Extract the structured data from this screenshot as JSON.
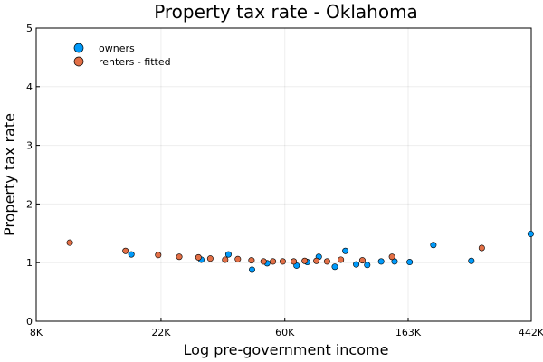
{
  "chart_data": {
    "type": "scatter",
    "title": "Property tax rate - Oklahoma",
    "xlabel": "Log pre-government income",
    "ylabel": "Property tax rate",
    "x_scale": "log",
    "xlim": [
      8000,
      442000
    ],
    "ylim": [
      0,
      5
    ],
    "x_ticks": [
      {
        "value": 8000,
        "label": "8K"
      },
      {
        "value": 22000,
        "label": "22K"
      },
      {
        "value": 60000,
        "label": "60K"
      },
      {
        "value": 163000,
        "label": "163K"
      },
      {
        "value": 442000,
        "label": "442K"
      }
    ],
    "y_ticks": [
      0,
      1,
      2,
      3,
      4,
      5
    ],
    "grid": true,
    "legend_position": "top-left",
    "series": [
      {
        "name": "owners",
        "color": "#009AFA",
        "points": [
          {
            "x": 17300,
            "y": 1.14
          },
          {
            "x": 30500,
            "y": 1.05
          },
          {
            "x": 38000,
            "y": 1.14
          },
          {
            "x": 46000,
            "y": 0.88
          },
          {
            "x": 52000,
            "y": 0.99
          },
          {
            "x": 66000,
            "y": 0.95
          },
          {
            "x": 72000,
            "y": 1.01
          },
          {
            "x": 79000,
            "y": 1.1
          },
          {
            "x": 90000,
            "y": 0.93
          },
          {
            "x": 98000,
            "y": 1.2
          },
          {
            "x": 107000,
            "y": 0.97
          },
          {
            "x": 117000,
            "y": 0.96
          },
          {
            "x": 131000,
            "y": 1.02
          },
          {
            "x": 146000,
            "y": 1.02
          },
          {
            "x": 165000,
            "y": 1.01
          },
          {
            "x": 200000,
            "y": 1.3
          },
          {
            "x": 272000,
            "y": 1.03
          },
          {
            "x": 440000,
            "y": 1.49
          }
        ]
      },
      {
        "name": "renters - fitted",
        "color": "#E26F46",
        "points": [
          {
            "x": 10500,
            "y": 1.34
          },
          {
            "x": 16500,
            "y": 1.2
          },
          {
            "x": 21500,
            "y": 1.13
          },
          {
            "x": 25500,
            "y": 1.1
          },
          {
            "x": 29800,
            "y": 1.09
          },
          {
            "x": 32800,
            "y": 1.07
          },
          {
            "x": 37000,
            "y": 1.05
          },
          {
            "x": 41000,
            "y": 1.06
          },
          {
            "x": 45800,
            "y": 1.04
          },
          {
            "x": 50500,
            "y": 1.02
          },
          {
            "x": 54500,
            "y": 1.02
          },
          {
            "x": 59000,
            "y": 1.02
          },
          {
            "x": 64500,
            "y": 1.02
          },
          {
            "x": 70500,
            "y": 1.03
          },
          {
            "x": 77500,
            "y": 1.03
          },
          {
            "x": 84500,
            "y": 1.02
          },
          {
            "x": 94500,
            "y": 1.05
          },
          {
            "x": 112500,
            "y": 1.04
          },
          {
            "x": 143000,
            "y": 1.1
          },
          {
            "x": 296000,
            "y": 1.25
          }
        ]
      }
    ]
  }
}
